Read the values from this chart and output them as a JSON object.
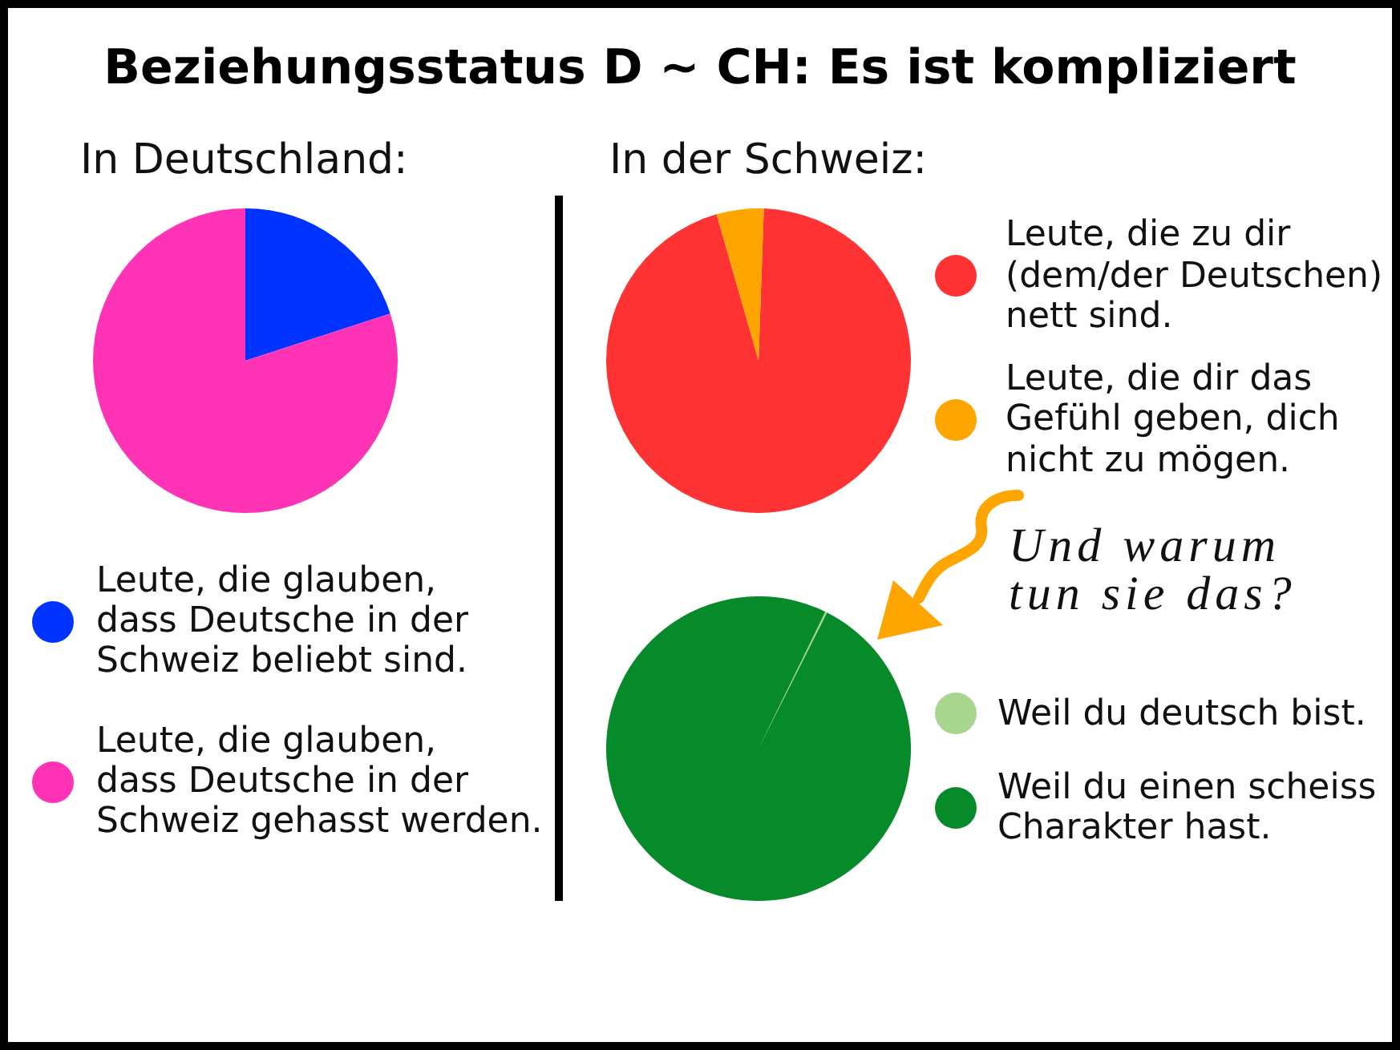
{
  "chart_data": [
    {
      "type": "pie",
      "title": "Beziehungsstatus D ~ CH: Es ist kompliziert",
      "subtitle": "In Deutschland:",
      "categories": [
        "Leute, die glauben,\ndass Deutsche in der\nSchweiz beliebt sind.",
        "Leute, die glauben,\ndass Deutsche in der\nSchweiz gehasst werden."
      ],
      "values": [
        20,
        80
      ],
      "colors": [
        "#0033ff",
        "#ff33b5"
      ],
      "legend": "bottom"
    },
    {
      "type": "pie",
      "subtitle": "In der Schweiz:",
      "categories": [
        "Leute, die zu dir\n(dem/der Deutschen)\nnett sind.",
        "Leute, die dir das\nGefühl geben, dich\nnicht zu mögen."
      ],
      "values": [
        95,
        5
      ],
      "colors": [
        "#ff3333",
        "#ffa500"
      ],
      "legend": "right"
    },
    {
      "type": "pie",
      "annotations": [
        "Und warum\ntun sie das?"
      ],
      "categories": [
        "Weil du deutsch bist.",
        "Weil du einen scheiss\nCharakter hast."
      ],
      "values": [
        0.2,
        99.8
      ],
      "colors": [
        "#a9d68f",
        "#078a2a"
      ],
      "legend": "right"
    }
  ]
}
